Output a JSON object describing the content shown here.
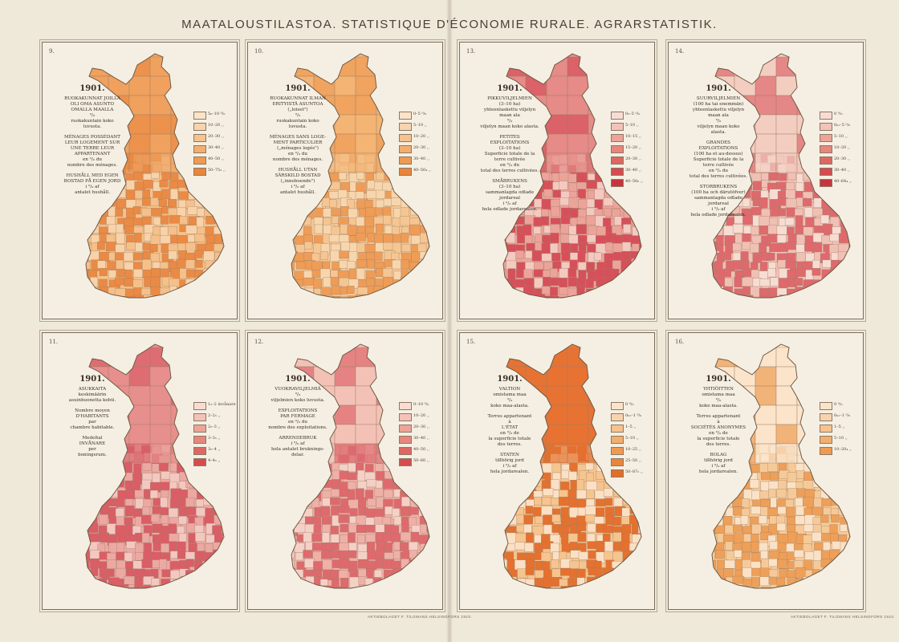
{
  "header": {
    "title": "MAATALOUSTILASTOA.   STATISTIQUE D'ÉCONOMIE RURALE.   AGRARSTATISTIK."
  },
  "imprint": {
    "left_text": "AKTIEBOLAGET F. TILGMANS HELSINGFORS 1910.",
    "right_text": "AKTIEBOLAGET F. TILGMANS HELSINGFORS 1910."
  },
  "maps": [
    {
      "number": "9.",
      "year": "1901.",
      "blocks": [
        "RUOKAKUNNAT JOILLA\nOLI OMA ASUNTO\nOMALLA MAALLA\n⁰/₀\nruokakuntain koko\nluvusta.",
        "MÉNAGES POSSÉDANT\nLEUR LOGEMENT SUR\nUNE TERRE LEUR\nAPPARTENANT\nen ⁰/₀ du\nnombre des ménages.",
        "HUSHÅLL MED EGEN\nBOSTAD PÅ EGEN JORD\ni ⁰/₀ af\nantalet hushåll."
      ],
      "legend": [
        {
          "label": "5₀–10 ⁰/₀",
          "color": "#fbe3c9"
        },
        {
          "label": "10–20   ,,",
          "color": "#f9d3ae"
        },
        {
          "label": "20–30   ,,",
          "color": "#f6c28f"
        },
        {
          "label": "30–40   ,,",
          "color": "#f3ae6e"
        },
        {
          "label": "40–50   ,,",
          "color": "#ef9a52"
        },
        {
          "label": "50–75₃  ,,",
          "color": "#ea853c"
        }
      ],
      "colors": {
        "base": "#f5c089",
        "dark": "#ea8a45",
        "light": "#f8d2a8",
        "north": "#ef9f5c"
      }
    },
    {
      "number": "10.",
      "year": "1901.",
      "blocks": [
        "RUOKAKUNNAT ILMAN\nERITYISTÄ ASUNTOA\n(„loiset\")\n⁰/₀\nruokakuntain koko\nluvusta.",
        "MÉNAGES SANS LOGE-\nMENT PARTICULIER\n(„ménages logés\")\nen ⁰/₀ du\nnombre des ménages.",
        "HUSHÅLL UTAN\nSÄRSKILD BOSTAD\n(„inneboende\")\ni ⁰/₀ af\nantalet hushåll."
      ],
      "legend": [
        {
          "label": "0–5 ⁰/₀",
          "color": "#fbe3c9"
        },
        {
          "label": "5–10  ,,",
          "color": "#f9d3ae"
        },
        {
          "label": "10–20  ,,",
          "color": "#f6c28f"
        },
        {
          "label": "20–30  ,,",
          "color": "#f3ae6e"
        },
        {
          "label": "30–40  ,,",
          "color": "#ef9a52"
        },
        {
          "label": "40–50₄ ,,",
          "color": "#ea853c"
        }
      ],
      "colors": {
        "base": "#f5c692",
        "dark": "#ee9c56",
        "light": "#f8d6ad",
        "north": "#f3b372"
      }
    },
    {
      "number": "13.",
      "year": "1901.",
      "blocks": [
        "PIKKUVILJELMIEN\n(3–10 ha)\nyhteenlaskettu viljelyn\nmaan ala\n⁰/₀\nviljelyn maan koko alasta.",
        "PETITES\nEXPLOITATIONS\n(3–10 ha)\nSuperficie totale de la\nterre cultivée\nen ⁰/₀ du\ntotal des terres cultivées.",
        "SMÅBRUKENS\n(3–10 ha)\nsammanlagda odlade\njordareal\ni ⁰/₀ af\nhela odlade jordarealen."
      ],
      "legend": [
        {
          "label": "0₃–5 ⁰/₀",
          "color": "#f8dcd4"
        },
        {
          "label": "5–10   ,,",
          "color": "#f4c2b8"
        },
        {
          "label": "10–15  ,,",
          "color": "#eea397"
        },
        {
          "label": "15–20  ,,",
          "color": "#e7867c"
        },
        {
          "label": "20–30  ,,",
          "color": "#de6764"
        },
        {
          "label": "30–40  ,,",
          "color": "#d54b50"
        },
        {
          "label": "40–50₆ ,,",
          "color": "#c8343e"
        }
      ],
      "colors": {
        "base": "#eca39a",
        "dark": "#d6505a",
        "light": "#f4c9c0",
        "north": "#e58a86"
      }
    },
    {
      "number": "14.",
      "year": "1901.",
      "blocks": [
        "SUURVILJELMIEN\n(100 ha tai enemmän)\nyhteenlaskettu viljelyn\nmaan ala\n⁰/₀\nviljelyn maan koko\nalasta.",
        "GRANDES\nEXPLOITATIONS\n(100 ha et au-dessus)\nSuperficie totale de la\nterre cultivée\nen ⁰/₀ du\ntotal des terres cultivées.",
        "STORBRUKENS\n(100 ha och därutöfver)\nsammanlagda odlade\njordareal\ni ⁰/₀ af\nhela odlade jordarealen."
      ],
      "legend": [
        {
          "label": "0 ⁰/₀",
          "color": "#f8dcd4"
        },
        {
          "label": "0₀₁–5 ⁰/₀",
          "color": "#f4c2b8"
        },
        {
          "label": "5–10  ,,",
          "color": "#eea397"
        },
        {
          "label": "10–20  ,,",
          "color": "#e7867c"
        },
        {
          "label": "20–30  ,,",
          "color": "#de6764"
        },
        {
          "label": "30–40  ,,",
          "color": "#d54b50"
        },
        {
          "label": "40–64₄ ,,",
          "color": "#c8343e"
        }
      ],
      "colors": {
        "base": "#f1c0b4",
        "dark": "#de6a6e",
        "light": "#f7dcd2",
        "north": "#f3cdc2"
      }
    },
    {
      "number": "11.",
      "year": "1901.",
      "blocks": [
        "ASUKKAITA\nkeskimäärin\nasuinhuonetta kohti.",
        "Nombre moyen\nD'HABITANTS\npar\nchambre habitable.",
        "Medeltal\nINVÅNARE\nper\nboningsrum."
      ],
      "legend": [
        {
          "label": "1₅–2  invånare",
          "color": "#f8dcd4"
        },
        {
          "label": "2–2₅   ,,",
          "color": "#f4c2b8"
        },
        {
          "label": "2₅–3   ,,",
          "color": "#eea397"
        },
        {
          "label": "3–3₅   ,,",
          "color": "#e7867c"
        },
        {
          "label": "3₅–4   ,,",
          "color": "#de6764"
        },
        {
          "label": "4–4₅   ,,",
          "color": "#d54b50"
        }
      ],
      "colors": {
        "base": "#eca8a2",
        "dark": "#d95e66",
        "light": "#f3c8c0",
        "north": "#e78e8c"
      }
    },
    {
      "number": "12.",
      "year": "1901.",
      "blocks": [
        "VUOKRAVILJELMIÄ\n⁰/₀\nviljelmien koko luvusta.",
        "EXPLOITATIONS\nPAR FERMAGE\nen ⁰/₀ du\nnombre des exploitations.",
        "ARRENDEBRUK\ni ⁰/₀ af\nhela antalet bruknings-\ndelar."
      ],
      "legend": [
        {
          "label": "0–10 ⁰/₀",
          "color": "#f8dcd4"
        },
        {
          "label": "10–20  ,,",
          "color": "#f4c2b8"
        },
        {
          "label": "20–30  ,,",
          "color": "#eea397"
        },
        {
          "label": "30–40  ,,",
          "color": "#e7867c"
        },
        {
          "label": "40–50  ,,",
          "color": "#de6764"
        },
        {
          "label": "50–60  ,,",
          "color": "#d54b50"
        }
      ],
      "colors": {
        "base": "#efb0a8",
        "dark": "#de6a6e",
        "light": "#f5d0c6",
        "north": "#f3c2b8"
      }
    },
    {
      "number": "15.",
      "year": "1901.",
      "blocks": [
        "VALTION\nomistama maa\n⁰/₀\nkoko maa-alasta.",
        "Terres appartenant\nà\nL'ÉTAT\nen ⁰/₀ de\nla superficie totale\ndes terres.",
        "STATEN\ntillhörig jord\ni ⁰/₀ af\nhela jordarealen."
      ],
      "legend": [
        {
          "label": "0 ⁰/₀",
          "color": "#fbe3c9"
        },
        {
          "label": "0₀₁–1 ⁰/₀",
          "color": "#f9d3ae"
        },
        {
          "label": "1–5   ,,",
          "color": "#f6c28f"
        },
        {
          "label": "5–10  ,,",
          "color": "#f3ae6e"
        },
        {
          "label": "10–25  ,,",
          "color": "#ef9a52"
        },
        {
          "label": "25–50  ,,",
          "color": "#ea853c"
        },
        {
          "label": "50–87₅ ,,",
          "color": "#e26e2a"
        }
      ],
      "colors": {
        "base": "#f6c48e",
        "dark": "#e4712f",
        "light": "#fbe0c4",
        "north": "#e66f2e"
      }
    },
    {
      "number": "16.",
      "year": "1901.",
      "blocks": [
        "YHTIÖITTEN\nomistama maa\n⁰/₀\nkoko maa-alasta.",
        "Terres appartenant\nà\nSOCIÉTÉS ANONYMES\nen ⁰/₀ de\nla superficie totale\ndes terres.",
        "BOLAG\ntillhörig jord\ni ⁰/₀ af\nhela jordarealen."
      ],
      "legend": [
        {
          "label": "0 ⁰/₀",
          "color": "#fbe3c9"
        },
        {
          "label": "0₀₁–1 ⁰/₀",
          "color": "#f9d3ae"
        },
        {
          "label": "1–5   ,,",
          "color": "#f6c28f"
        },
        {
          "label": "5–10  ,,",
          "color": "#f3ae6e"
        },
        {
          "label": "10–20₄ ,,",
          "color": "#ef9a52"
        }
      ],
      "colors": {
        "base": "#f6ca98",
        "dark": "#ee9f58",
        "light": "#fbe2c6",
        "north": "#fbe6cc"
      }
    }
  ]
}
